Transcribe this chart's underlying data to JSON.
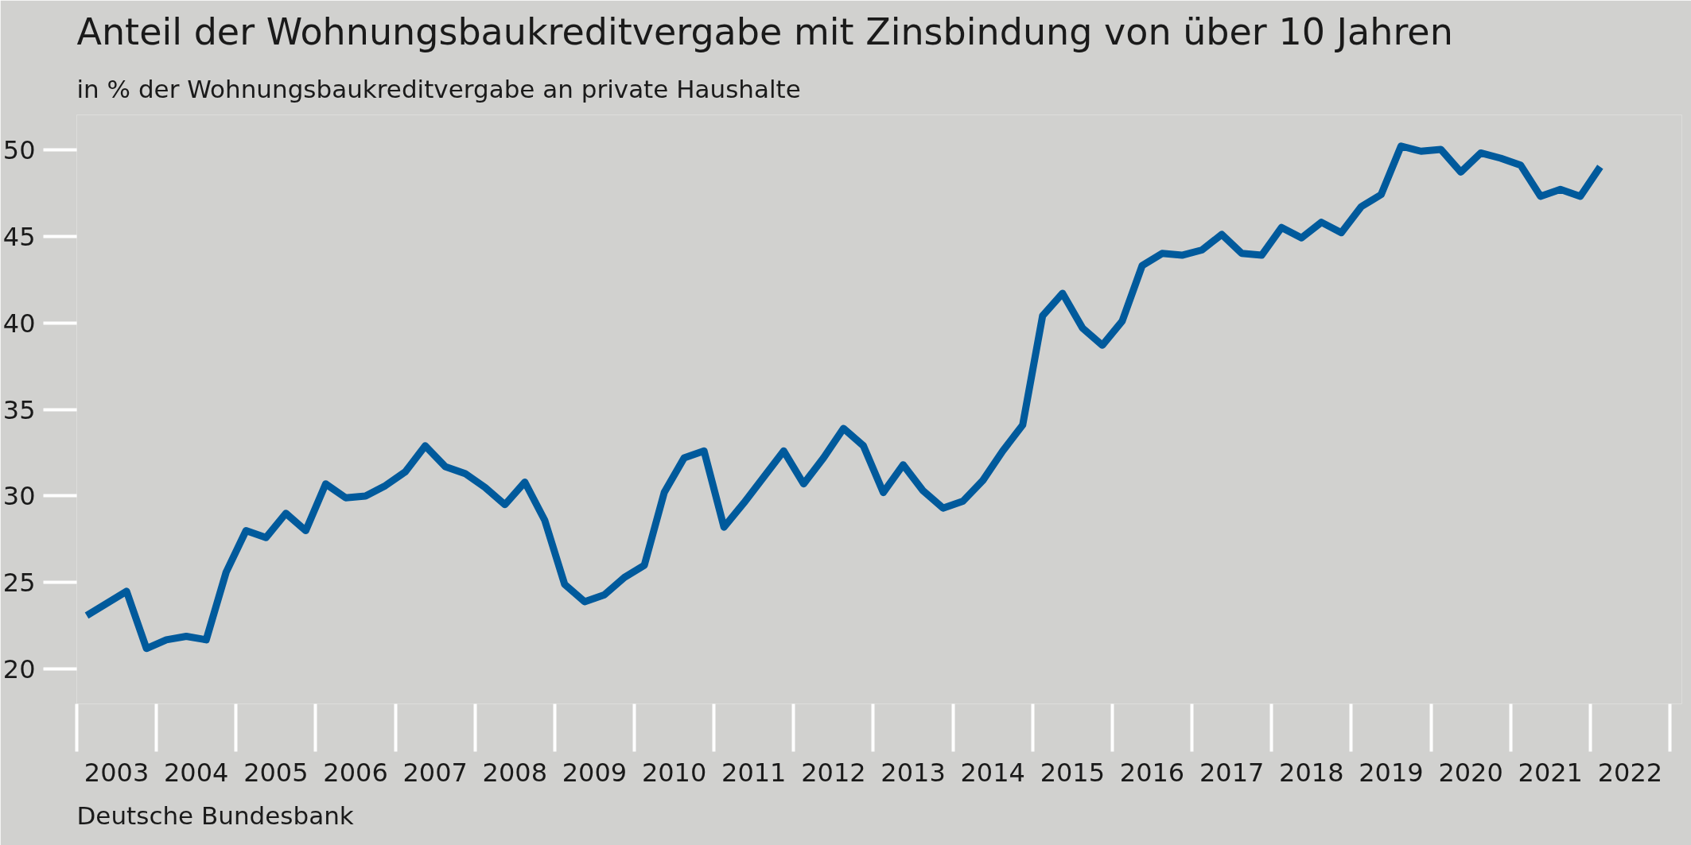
{
  "chart_data": {
    "type": "line",
    "title": "Anteil der Wohnungsbaukreditvergabe mit Zinsbindung von über 10 Jahren",
    "subtitle": "in % der Wohnungsbaukreditvergabe an private Haushalte",
    "annotations": [
      "Deutsche Bundesbank"
    ],
    "x": [
      2003.125,
      2003.375,
      2003.625,
      2003.875,
      2004.125,
      2004.375,
      2004.625,
      2004.875,
      2005.125,
      2005.375,
      2005.625,
      2005.875,
      2006.125,
      2006.375,
      2006.625,
      2006.875,
      2007.125,
      2007.375,
      2007.625,
      2007.875,
      2008.125,
      2008.375,
      2008.625,
      2008.875,
      2009.125,
      2009.375,
      2009.625,
      2009.875,
      2010.125,
      2010.375,
      2010.625,
      2010.875,
      2011.125,
      2011.375,
      2011.625,
      2011.875,
      2012.125,
      2012.375,
      2012.625,
      2012.875,
      2013.125,
      2013.375,
      2013.625,
      2013.875,
      2014.125,
      2014.375,
      2014.625,
      2014.875,
      2015.125,
      2015.375,
      2015.625,
      2015.875,
      2016.125,
      2016.375,
      2016.625,
      2016.875,
      2017.125,
      2017.375,
      2017.625,
      2017.875,
      2018.125,
      2018.375,
      2018.625,
      2018.875,
      2019.125,
      2019.375,
      2019.625,
      2019.875,
      2020.125,
      2020.375,
      2020.625,
      2020.875,
      2021.125,
      2021.375,
      2021.625,
      2021.875,
      2022.125
    ],
    "series": [
      {
        "color": "#005a9c",
        "values": [
          23.1,
          23.8,
          24.5,
          21.2,
          21.7,
          21.9,
          21.7,
          25.6,
          28.0,
          27.6,
          29.0,
          28.0,
          30.7,
          29.9,
          30.0,
          30.6,
          31.4,
          32.9,
          31.7,
          31.3,
          30.5,
          29.5,
          30.8,
          28.6,
          24.9,
          23.9,
          24.3,
          25.3,
          26.0,
          30.2,
          32.2,
          32.6,
          28.2,
          29.6,
          31.1,
          32.6,
          30.7,
          32.2,
          33.9,
          32.9,
          30.2,
          31.8,
          30.3,
          29.3,
          29.7,
          30.9,
          32.6,
          34.1,
          40.4,
          41.7,
          39.7,
          38.7,
          40.1,
          43.3,
          44.0,
          43.9,
          44.2,
          45.1,
          44.0,
          43.9,
          45.5,
          44.9,
          45.8,
          45.2,
          46.7,
          47.4,
          50.2,
          49.9,
          50.0,
          48.7,
          49.8,
          49.5,
          49.1,
          47.3,
          47.7,
          47.3,
          49.0
        ]
      }
    ],
    "xlim": [
      2003,
      2023.15
    ],
    "xticks": [
      {
        "value": 2003.5,
        "label": "2003"
      },
      {
        "value": 2004.5,
        "label": "2004"
      },
      {
        "value": 2005.5,
        "label": "2005"
      },
      {
        "value": 2006.5,
        "label": "2006"
      },
      {
        "value": 2007.5,
        "label": "2007"
      },
      {
        "value": 2008.5,
        "label": "2008"
      },
      {
        "value": 2009.5,
        "label": "2009"
      },
      {
        "value": 2010.5,
        "label": "2010"
      },
      {
        "value": 2011.5,
        "label": "2011"
      },
      {
        "value": 2012.5,
        "label": "2012"
      },
      {
        "value": 2013.5,
        "label": "2013"
      },
      {
        "value": 2014.5,
        "label": "2014"
      },
      {
        "value": 2015.5,
        "label": "2015"
      },
      {
        "value": 2016.5,
        "label": "2016"
      },
      {
        "value": 2017.5,
        "label": "2017"
      },
      {
        "value": 2018.5,
        "label": "2018"
      },
      {
        "value": 2019.5,
        "label": "2019"
      },
      {
        "value": 2020.5,
        "label": "2020"
      },
      {
        "value": 2021.5,
        "label": "2021"
      },
      {
        "value": 2022.5,
        "label": "2022"
      }
    ],
    "ylim": [
      18,
      52
    ],
    "yticks": [
      20,
      25,
      30,
      35,
      40,
      45,
      50
    ],
    "grid": false,
    "marker": "none",
    "line_style": "solid"
  }
}
